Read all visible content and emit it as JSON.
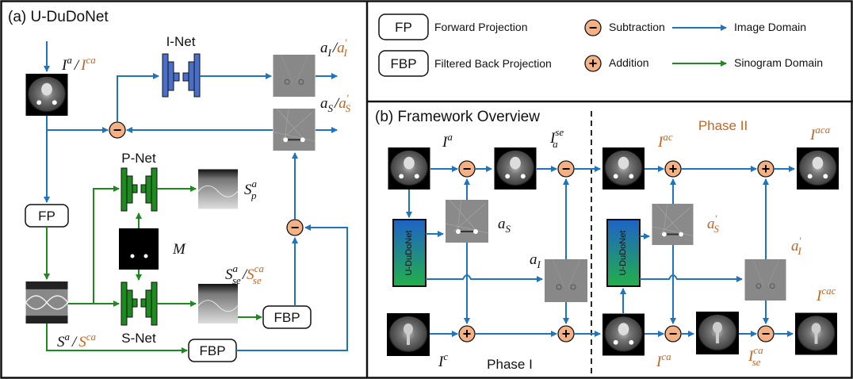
{
  "panel_a": {
    "title": "(a) U-DuDoNet",
    "inet_label": "I-Net",
    "pnet_label": "P-Net",
    "snet_label": "S-Net",
    "fp_label": "FP",
    "fbp_label": "FBP",
    "input_label": {
      "base1": "I",
      "sup1": "a",
      "slash": "/",
      "base2": "I",
      "sup2": "ca"
    },
    "aI_label": {
      "base1": "a",
      "sub1": "I",
      "slash": "/",
      "base2": "a",
      "sup2": "′",
      "sub2": "I"
    },
    "aS_label": {
      "base1": "a",
      "sub1": "S",
      "slash": "/",
      "base2": "a",
      "sup2": "′",
      "sub2": "S"
    },
    "sp_label": {
      "base": "S",
      "sup": "a",
      "sub": "p"
    },
    "m_label": "M",
    "sse_label": {
      "base1": "S",
      "sup1": "a",
      "sub1": "se",
      "slash": "/",
      "base2": "S",
      "sup2": "ca",
      "sub2": "se"
    },
    "s_label": {
      "base1": "S",
      "sup1": "a",
      "slash": "/",
      "base2": "S",
      "sup2": "ca"
    }
  },
  "legend": {
    "fp_box": "FP",
    "fp_text": "Forward Projection",
    "fbp_box": "FBP",
    "fbp_text": "Filtered Back Projection",
    "sub_symbol": "−",
    "sub_text": "Subtraction",
    "add_symbol": "+",
    "add_text": "Addition",
    "image_domain": "Image Domain",
    "sinogram_domain": "Sinogram Domain"
  },
  "panel_b": {
    "title": "(b) Framework Overview",
    "phase1": "Phase I",
    "phase2": "Phase II",
    "ududonet": "U-DuDoNet",
    "labels": {
      "ia": {
        "base": "I",
        "sup": "a"
      },
      "iase": {
        "base": "I",
        "sup": "se",
        "sub": "a"
      },
      "ic": {
        "base": "I",
        "sup": "c"
      },
      "as": {
        "base": "a",
        "sub": "S"
      },
      "ai": {
        "base": "a",
        "sub": "I"
      },
      "iac": {
        "base": "I",
        "sup": "ac"
      },
      "iaca": {
        "base": "I",
        "sup": "aca"
      },
      "as2": {
        "base": "a",
        "sup": "′",
        "sub": "S"
      },
      "ai2": {
        "base": "a",
        "sup": "′",
        "sub": "I"
      },
      "ica": {
        "base": "I",
        "sup": "ca"
      },
      "icase": {
        "base": "I",
        "sup": "ca",
        "sub": "se"
      },
      "icac": {
        "base": "I",
        "sup": "cac"
      }
    }
  },
  "colors": {
    "image_domain": "#1f74c0",
    "sinogram_domain": "#1c8a1c",
    "operator_fill": "#f4b183",
    "phase2_text": "#c8651e",
    "inet": "#4a6fc8",
    "pnet_snet": "#1f8a1f"
  },
  "symbols": {
    "minus": "−",
    "plus": "+"
  }
}
